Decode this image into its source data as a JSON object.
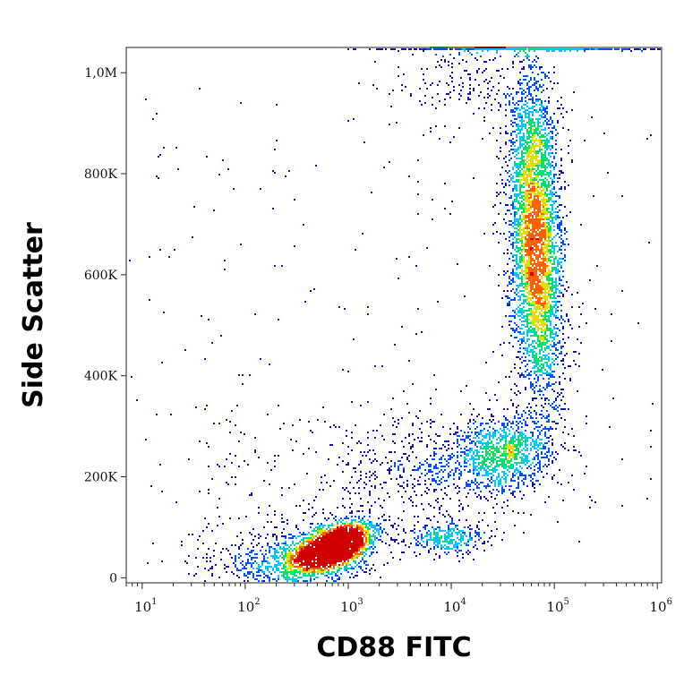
{
  "chart_data": {
    "type": "scatter",
    "subtype": "flow-cytometry-density-dot-plot",
    "title": "",
    "xlabel": "CD88 FITC",
    "ylabel": "Side Scatter",
    "x_scale": "log",
    "xlim": [
      7,
      1100000
    ],
    "ylim": [
      -10000,
      1050000
    ],
    "x_ticks": [
      {
        "value": 10,
        "base": "10",
        "exp": "1"
      },
      {
        "value": 100,
        "base": "10",
        "exp": "2"
      },
      {
        "value": 1000,
        "base": "10",
        "exp": "3"
      },
      {
        "value": 10000,
        "base": "10",
        "exp": "4"
      },
      {
        "value": 100000,
        "base": "10",
        "exp": "5"
      },
      {
        "value": 1000000,
        "base": "10",
        "exp": "6"
      }
    ],
    "y_ticks": [
      {
        "value": 0,
        "label": "0"
      },
      {
        "value": 200000,
        "label": "200K"
      },
      {
        "value": 400000,
        "label": "400K"
      },
      {
        "value": 600000,
        "label": "600K"
      },
      {
        "value": 800000,
        "label": "800K"
      },
      {
        "value": 1000000,
        "label": "1,0M"
      }
    ],
    "grid": false,
    "colormap": [
      "#1414b4",
      "#0050ff",
      "#00c8ff",
      "#00e070",
      "#e0e000",
      "#ff6000",
      "#d00000"
    ],
    "populations": [
      {
        "name": "CD88-negative low-SSC cluster",
        "x_center": 800,
        "y_center": 70000,
        "count_weight": 0.3,
        "peak_density": "high"
      },
      {
        "name": "CD88-positive high-SSC cluster",
        "x_center": 70000,
        "y_center": 650000,
        "count_weight": 0.42,
        "peak_density": "high"
      },
      {
        "name": "intermediate-SSC cluster",
        "x_center": 40000,
        "y_center": 240000,
        "count_weight": 0.1,
        "peak_density": "medium"
      },
      {
        "name": "low-SSC intermediate-FITC cluster",
        "x_center": 12000,
        "y_center": 85000,
        "count_weight": 0.04,
        "peak_density": "low"
      },
      {
        "name": "events at SSC ceiling",
        "x_center": 80000,
        "y_center": 1040000,
        "count_weight": 0.04,
        "peak_density": "saturated"
      }
    ]
  }
}
